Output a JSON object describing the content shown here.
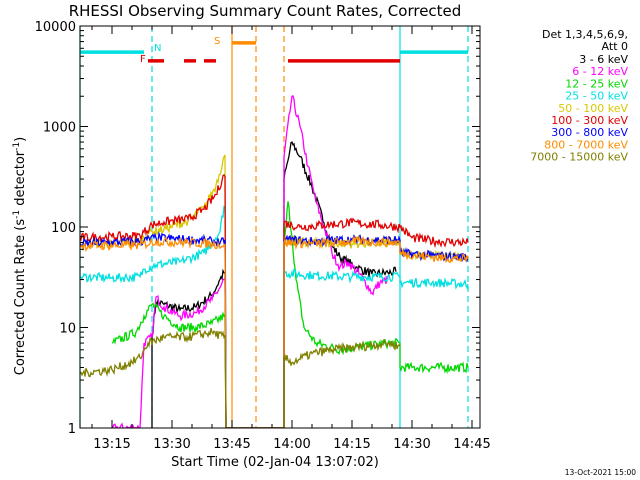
{
  "chart_data": {
    "type": "line",
    "title": "RHESSI Observing Summary Count Rates, Corrected",
    "xlabel": "Start Time (02-Jan-04 13:07:02)",
    "ylabel_main": "Corrected Count Rate (s",
    "ylabel_sup1": "-1",
    "ylabel_mid": " detector",
    "ylabel_sup2": "-1",
    "ylabel_end": ")",
    "y_scale": "log",
    "ylim": [
      1,
      10000
    ],
    "xlim": [
      "13:07",
      "14:47"
    ],
    "x_ticks": [
      "13:15",
      "13:30",
      "13:45",
      "14:00",
      "14:15",
      "14:30",
      "14:45"
    ],
    "y_ticks": [
      "1",
      "10",
      "100",
      "1000",
      "10000"
    ],
    "legend_header1": "Det 1,3,4,5,6,9,",
    "legend_header2": "Att 0",
    "legend_placement": "right",
    "footer": "13-Oct-2021 15:00",
    "flag_labels": {
      "F": "F",
      "N": "N",
      "S": "S"
    },
    "colors": {
      "3-6": "#000000",
      "6-12": "#ff00ff",
      "12-25": "#00d800",
      "25-50": "#00e0e0",
      "50-100": "#d8c800",
      "100-300": "#e00000",
      "300-800": "#0000ff",
      "800-7000": "#ff8c00",
      "7000-15000": "#808000"
    },
    "series": [
      {
        "name": "3 - 6 keV",
        "key": "3-6",
        "points": [
          [
            "13:25",
            0
          ],
          [
            "13:25",
            8
          ],
          [
            "13:26",
            18
          ],
          [
            "13:28",
            17
          ],
          [
            "13:32",
            15
          ],
          [
            "13:36",
            16
          ],
          [
            "13:40",
            21
          ],
          [
            "13:42",
            30
          ],
          [
            "13:43",
            35
          ],
          [
            "13:44",
            0
          ],
          [
            "13:58",
            0
          ],
          [
            "13:58",
            300
          ],
          [
            "14:00",
            700
          ],
          [
            "14:02",
            500
          ],
          [
            "14:05",
            250
          ],
          [
            "14:08",
            110
          ],
          [
            "14:10",
            65
          ],
          [
            "14:12",
            50
          ],
          [
            "14:16",
            40
          ],
          [
            "14:20",
            34
          ],
          [
            "14:24",
            35
          ],
          [
            "14:26",
            36
          ]
        ]
      },
      {
        "name": "6 - 12 keV",
        "key": "6-12",
        "points": [
          [
            "13:15",
            1
          ],
          [
            "13:22",
            1
          ],
          [
            "13:23",
            7
          ],
          [
            "13:25",
            8
          ],
          [
            "13:26",
            20
          ],
          [
            "13:28",
            16
          ],
          [
            "13:32",
            13
          ],
          [
            "13:36",
            14
          ],
          [
            "13:40",
            19
          ],
          [
            "13:42",
            25
          ],
          [
            "13:43",
            30
          ],
          [
            "13:44",
            0
          ],
          [
            "13:58",
            0
          ],
          [
            "13:58",
            500
          ],
          [
            "14:00",
            2000
          ],
          [
            "14:02",
            1000
          ],
          [
            "14:04",
            400
          ],
          [
            "14:06",
            180
          ],
          [
            "14:08",
            100
          ],
          [
            "14:10",
            55
          ],
          [
            "14:12",
            40
          ],
          [
            "14:14",
            45
          ],
          [
            "14:18",
            30
          ],
          [
            "14:20",
            22
          ],
          [
            "14:22",
            28
          ],
          [
            "14:24",
            30
          ]
        ]
      },
      {
        "name": "12 - 25 keV",
        "key": "12-25",
        "points": [
          [
            "13:15",
            7
          ],
          [
            "13:21",
            9
          ],
          [
            "13:23",
            13
          ],
          [
            "13:25",
            17
          ],
          [
            "13:28",
            13
          ],
          [
            "13:32",
            10
          ],
          [
            "13:36",
            10
          ],
          [
            "13:40",
            11
          ],
          [
            "13:43",
            13
          ],
          [
            "13:44",
            0
          ],
          [
            "13:58",
            0
          ],
          [
            "13:58",
            60
          ],
          [
            "13:59",
            180
          ],
          [
            "14:00",
            80
          ],
          [
            "14:01",
            30
          ],
          [
            "14:03",
            10
          ],
          [
            "14:06",
            7
          ],
          [
            "14:12",
            6
          ],
          [
            "14:18",
            6.5
          ],
          [
            "14:24",
            7
          ],
          [
            "14:27",
            7
          ],
          [
            "14:27",
            4
          ],
          [
            "14:30",
            4
          ],
          [
            "14:44",
            4
          ]
        ]
      },
      {
        "name": "25 - 50 keV",
        "key": "25-50",
        "points": [
          [
            "13:07",
            32
          ],
          [
            "13:15",
            31
          ],
          [
            "13:22",
            32
          ],
          [
            "13:23",
            38
          ],
          [
            "13:26",
            42
          ],
          [
            "13:32",
            45
          ],
          [
            "13:38",
            55
          ],
          [
            "13:42",
            90
          ],
          [
            "13:43",
            160
          ],
          [
            "13:44",
            0
          ],
          [
            "13:58",
            0
          ],
          [
            "13:58",
            35
          ],
          [
            "14:05",
            33
          ],
          [
            "14:15",
            32
          ],
          [
            "14:27",
            32
          ],
          [
            "14:27",
            28
          ],
          [
            "14:35",
            28
          ],
          [
            "14:44",
            27
          ]
        ]
      },
      {
        "name": "50 - 100 keV",
        "key": "50-100",
        "points": [
          [
            "13:07",
            70
          ],
          [
            "13:15",
            68
          ],
          [
            "13:22",
            72
          ],
          [
            "13:24",
            88
          ],
          [
            "13:28",
            95
          ],
          [
            "13:34",
            115
          ],
          [
            "13:38",
            155
          ],
          [
            "13:41",
            260
          ],
          [
            "13:43",
            500
          ],
          [
            "13:44",
            0
          ],
          [
            "13:58",
            0
          ],
          [
            "13:58",
            75
          ],
          [
            "14:05",
            70
          ],
          [
            "14:15",
            68
          ],
          [
            "14:27",
            70
          ],
          [
            "14:27",
            55
          ],
          [
            "14:35",
            52
          ],
          [
            "14:44",
            50
          ]
        ]
      },
      {
        "name": "100 - 300 keV",
        "key": "100-300",
        "points": [
          [
            "13:07",
            78
          ],
          [
            "13:15",
            80
          ],
          [
            "13:22",
            82
          ],
          [
            "13:25",
            105
          ],
          [
            "13:28",
            112
          ],
          [
            "13:34",
            120
          ],
          [
            "13:38",
            150
          ],
          [
            "13:41",
            210
          ],
          [
            "13:43",
            330
          ],
          [
            "13:44",
            0
          ],
          [
            "13:58",
            0
          ],
          [
            "13:58",
            110
          ],
          [
            "14:02",
            100
          ],
          [
            "14:08",
            105
          ],
          [
            "14:15",
            110
          ],
          [
            "14:22",
            105
          ],
          [
            "14:27",
            100
          ],
          [
            "14:30",
            78
          ],
          [
            "14:36",
            72
          ],
          [
            "14:44",
            70
          ]
        ]
      },
      {
        "name": "300 - 800 keV",
        "key": "300-800",
        "points": [
          [
            "13:07",
            68
          ],
          [
            "13:22",
            72
          ],
          [
            "13:26",
            78
          ],
          [
            "13:34",
            75
          ],
          [
            "13:40",
            72
          ],
          [
            "13:43",
            70
          ],
          [
            "13:44",
            0
          ],
          [
            "13:58",
            0
          ],
          [
            "13:58",
            75
          ],
          [
            "14:05",
            72
          ],
          [
            "14:15",
            75
          ],
          [
            "14:27",
            74
          ],
          [
            "14:27",
            55
          ],
          [
            "14:35",
            52
          ],
          [
            "14:44",
            50
          ]
        ]
      },
      {
        "name": "800 - 7000 keV",
        "key": "800-7000",
        "points": [
          [
            "13:07",
            65
          ],
          [
            "13:22",
            66
          ],
          [
            "13:26",
            72
          ],
          [
            "13:34",
            70
          ],
          [
            "13:40",
            68
          ],
          [
            "13:43",
            66
          ],
          [
            "13:44",
            0
          ],
          [
            "13:58",
            0
          ],
          [
            "13:58",
            70
          ],
          [
            "14:05",
            68
          ],
          [
            "14:15",
            72
          ],
          [
            "14:27",
            70
          ],
          [
            "14:27",
            55
          ],
          [
            "14:35",
            50
          ],
          [
            "14:44",
            48
          ]
        ]
      },
      {
        "name": "7000 - 15000 keV",
        "key": "7000-15000",
        "points": [
          [
            "13:07",
            3.5
          ],
          [
            "13:15",
            3.8
          ],
          [
            "13:20",
            4.5
          ],
          [
            "13:22",
            5
          ],
          [
            "13:24",
            7
          ],
          [
            "13:28",
            8
          ],
          [
            "13:34",
            8
          ],
          [
            "13:40",
            9
          ],
          [
            "13:43",
            8
          ],
          [
            "13:44",
            0
          ],
          [
            "13:58",
            0
          ],
          [
            "13:58",
            5
          ],
          [
            "14:00",
            4.5
          ],
          [
            "14:05",
            5.5
          ],
          [
            "14:10",
            6
          ],
          [
            "14:18",
            6.5
          ],
          [
            "14:24",
            7
          ],
          [
            "14:27",
            6.5
          ]
        ]
      }
    ],
    "flags": [
      {
        "label": "N",
        "color": "#00e0e0",
        "segments": [
          [
            "13:07",
            "13:23"
          ],
          [
            "14:27",
            "14:44"
          ]
        ],
        "level": 5500
      },
      {
        "label": "F",
        "color": "#e00000",
        "segments": [
          [
            "13:24",
            "13:28"
          ],
          [
            "13:33",
            "13:36"
          ],
          [
            "13:38",
            "13:41"
          ],
          [
            "13:59",
            "14:27"
          ]
        ],
        "level": 4500
      },
      {
        "label": "S",
        "color": "#ff8c00",
        "segments": [
          [
            "13:45",
            "13:51"
          ]
        ],
        "level": 6800
      }
    ],
    "vlines": [
      {
        "time": "13:07",
        "color": "#00e0e0",
        "style": "solid"
      },
      {
        "time": "13:25",
        "color": "#00e0e0",
        "style": "dashed"
      },
      {
        "time": "13:45",
        "color": "#ff8c00",
        "style": "solid"
      },
      {
        "time": "13:51",
        "color": "#ff8c00",
        "style": "dashed"
      },
      {
        "time": "13:58",
        "color": "#ff8c00",
        "style": "dashed"
      },
      {
        "time": "14:27",
        "color": "#00e0e0",
        "style": "solid"
      },
      {
        "time": "14:44",
        "color": "#00e0e0",
        "style": "dashed"
      }
    ]
  }
}
